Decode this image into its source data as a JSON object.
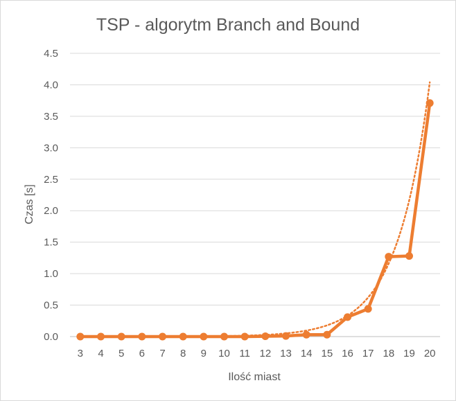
{
  "chart_data": {
    "type": "line",
    "title": "TSP - algorytm Branch and Bound",
    "xlabel": "Ilość miast",
    "ylabel": "Czas [s]",
    "categories": [
      "3",
      "4",
      "5",
      "6",
      "7",
      "8",
      "9",
      "10",
      "11",
      "12",
      "13",
      "14",
      "15",
      "16",
      "17",
      "18",
      "19",
      "20"
    ],
    "series": [
      {
        "values": [
          0.0,
          0.0,
          0.0,
          0.0,
          0.0,
          0.0,
          0.0,
          0.0,
          0.0,
          0.005,
          0.01,
          0.03,
          0.03,
          0.31,
          0.44,
          1.27,
          1.28,
          3.71
        ],
        "color": "#ed7d31",
        "markers": "circle"
      }
    ],
    "trendline": {
      "type": "exponential",
      "style": "dotted",
      "color": "#ed7d31",
      "start_value": 0.0001,
      "end_value": 4.04
    },
    "ylim": [
      0,
      4.5
    ],
    "yticks": [
      "0.0",
      "0.5",
      "1.0",
      "1.5",
      "2.0",
      "2.5",
      "3.0",
      "3.5",
      "4.0",
      "4.5"
    ],
    "grid": true,
    "legend": "none"
  }
}
